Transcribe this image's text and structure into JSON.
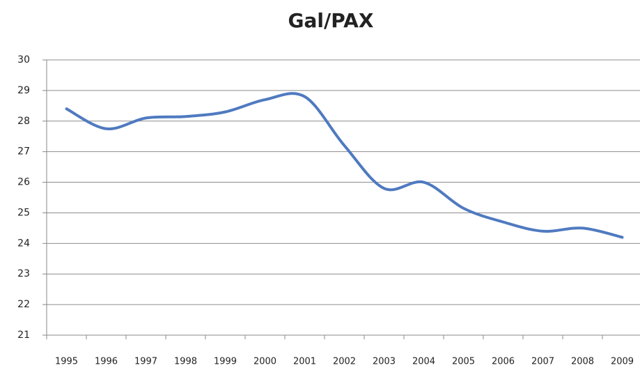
{
  "chart_data": {
    "type": "line",
    "title": "Gal/PAX",
    "categories": [
      "1995",
      "1996",
      "1997",
      "1998",
      "1999",
      "2000",
      "2001",
      "2002",
      "2003",
      "2004",
      "2005",
      "2006",
      "2007",
      "2008",
      "2009"
    ],
    "series": [
      {
        "name": "Gal/PAX",
        "color": "#4f7ac0",
        "values": [
          28.4,
          27.75,
          28.1,
          28.15,
          28.3,
          28.7,
          28.8,
          27.2,
          25.8,
          26.0,
          25.15,
          24.7,
          24.4,
          24.5,
          24.2
        ]
      }
    ],
    "ylim": [
      21,
      30
    ],
    "yticks": [
      21,
      22,
      23,
      24,
      25,
      26,
      27,
      28,
      29,
      30
    ],
    "grid": true,
    "smooth": true
  }
}
